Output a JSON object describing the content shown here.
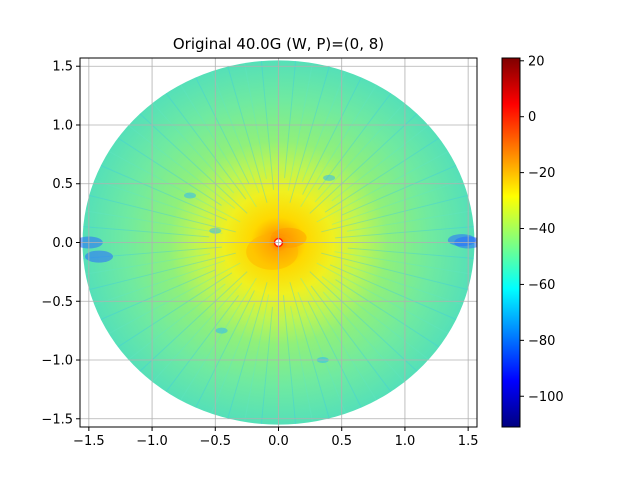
{
  "chart_data": {
    "type": "heatmap",
    "title": "Original 40.0G (W, P)=(0, 8)",
    "xlabel": "",
    "ylabel": "",
    "xlim": [
      -1.57,
      1.57
    ],
    "ylim": [
      -1.57,
      1.57
    ],
    "x_ticks": [
      -1.5,
      -1.0,
      -0.5,
      0.0,
      0.5,
      1.0,
      1.5
    ],
    "x_tick_labels": [
      "−1.5",
      "−1.0",
      "−0.5",
      "0.0",
      "0.5",
      "1.0",
      "1.5"
    ],
    "y_ticks": [
      1.5,
      1.0,
      0.5,
      0.0,
      -0.5,
      -1.0,
      -1.5
    ],
    "y_tick_labels": [
      "1.5",
      "1.0",
      "0.5",
      "0.0",
      "−0.5",
      "−1.0",
      "−1.5"
    ],
    "grid": true,
    "domain": "disk of radius 1.55 centered at (0, 0)",
    "colormap": "jet",
    "colorbar": {
      "range": [
        -111,
        21
      ],
      "ticks": [
        20,
        0,
        -20,
        -40,
        -60,
        -80,
        -100
      ],
      "tick_labels": [
        "20",
        "0",
        "−20",
        "−40",
        "−60",
        "−80",
        "−100"
      ]
    },
    "regions": [
      {
        "description": "center peak",
        "x": 0.0,
        "y": 0.0,
        "value": -5
      },
      {
        "description": "inner core",
        "radius": 0.15,
        "value": -15
      },
      {
        "description": "yellow region",
        "radius": 0.6,
        "value": -28
      },
      {
        "description": "outer field",
        "radius": 1.55,
        "value": -50
      },
      {
        "description": "deep nulls along horizontal axis edges",
        "value": -85
      }
    ]
  }
}
